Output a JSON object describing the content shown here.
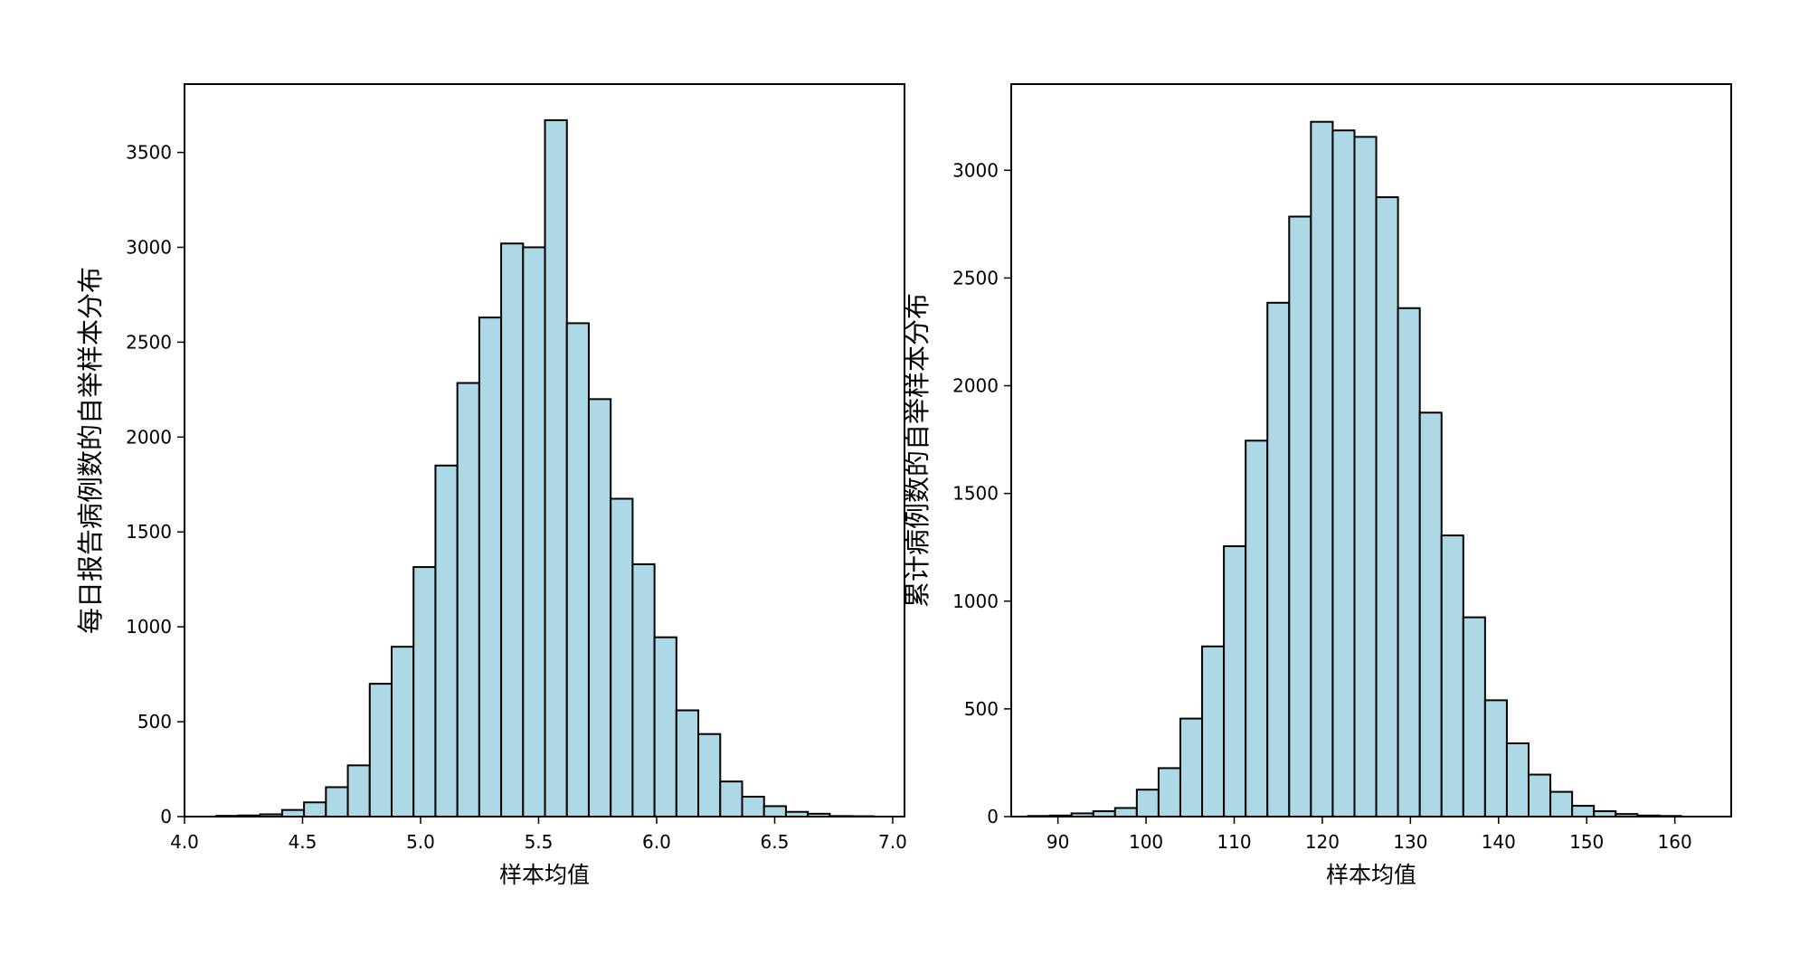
{
  "chart_data": [
    {
      "type": "bar",
      "title": "",
      "xlabel": "样本均值",
      "ylabel": "每日报告病例数的自举样本分布",
      "xlim": [
        4.0,
        7.05
      ],
      "ylim": [
        0,
        3860
      ],
      "xticks": [
        4.0,
        4.5,
        5.0,
        5.5,
        6.0,
        6.5,
        7.0
      ],
      "xtick_labels": [
        "4.0",
        "4.5",
        "5.0",
        "5.5",
        "6.0",
        "6.5",
        "7.0"
      ],
      "yticks": [
        0,
        500,
        1000,
        1500,
        2000,
        2500,
        3000,
        3500
      ],
      "ytick_labels": [
        "0",
        "500",
        "1000",
        "1500",
        "2000",
        "2500",
        "3000",
        "3500"
      ],
      "bin_edges": [
        4.135,
        4.2278,
        4.3206,
        4.4134,
        4.5062,
        4.599,
        4.6918,
        4.7846,
        4.8774,
        4.9702,
        5.063,
        5.1558,
        5.2486,
        5.3414,
        5.4342,
        5.527,
        5.6198,
        5.7126,
        5.8054,
        5.8982,
        5.991,
        6.0838,
        6.1766,
        6.2694,
        6.3622,
        6.455,
        6.5478,
        6.6406,
        6.7334,
        6.8262,
        6.919
      ],
      "values": [
        4,
        6,
        12,
        35,
        75,
        155,
        270,
        700,
        895,
        1315,
        1850,
        2285,
        2630,
        3020,
        3000,
        3670,
        2600,
        2200,
        1675,
        1330,
        945,
        560,
        435,
        185,
        105,
        55,
        25,
        15,
        3,
        2
      ],
      "bar_color": "#add8e6",
      "edge_color": "#000000",
      "grid": false
    },
    {
      "type": "bar",
      "title": "",
      "xlabel": "样本均值",
      "ylabel": "累计病例数的自举样本分布",
      "xlim": [
        84.7,
        166.4
      ],
      "ylim": [
        0,
        3400
      ],
      "xticks": [
        90,
        100,
        110,
        120,
        130,
        140,
        150,
        160
      ],
      "xtick_labels": [
        "90",
        "100",
        "110",
        "120",
        "130",
        "140",
        "150",
        "160"
      ],
      "yticks": [
        0,
        500,
        1000,
        1500,
        2000,
        2500,
        3000
      ],
      "ytick_labels": [
        "0",
        "500",
        "1000",
        "1500",
        "2000",
        "2500",
        "3000"
      ],
      "bin_edges": [
        86.6,
        89.07,
        91.54,
        94.01,
        96.48,
        98.95,
        101.42,
        103.89,
        106.36,
        108.83,
        111.3,
        113.77,
        116.24,
        118.71,
        121.18,
        123.65,
        126.12,
        128.59,
        131.06,
        133.53,
        136.0,
        138.47,
        140.94,
        143.41,
        145.88,
        148.35,
        150.82,
        153.29,
        155.76,
        158.23,
        160.7
      ],
      "values": [
        3,
        5,
        15,
        25,
        40,
        125,
        225,
        455,
        790,
        1255,
        1745,
        2385,
        2785,
        3225,
        3185,
        3155,
        2875,
        2360,
        1875,
        1305,
        925,
        540,
        340,
        195,
        115,
        50,
        25,
        12,
        5,
        3
      ],
      "bar_color": "#add8e6",
      "edge_color": "#000000",
      "grid": false
    }
  ]
}
